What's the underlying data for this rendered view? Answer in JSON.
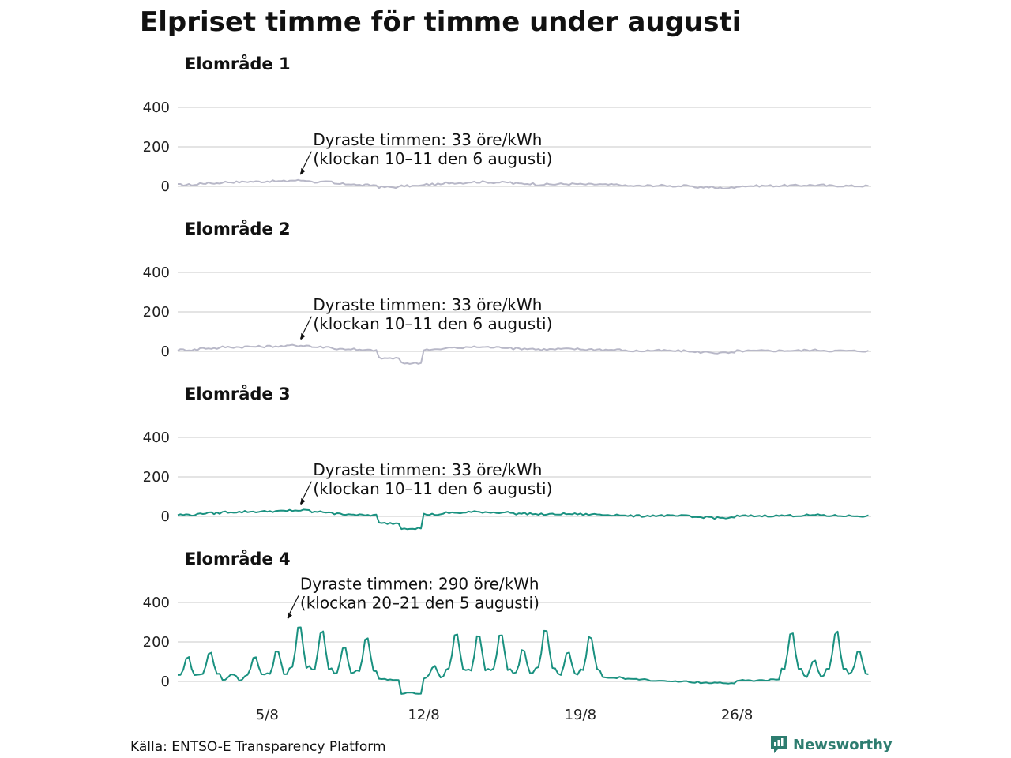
{
  "title": "Elpriset timme för timme under augusti",
  "source": "Källa: ENTSO-E Transparency Platform",
  "brand": "Newsworthy",
  "colors": {
    "muted": "#b8b8c8",
    "accent": "#1a9180",
    "brand": "#2e7d70"
  },
  "chart_data": [
    {
      "type": "line",
      "title": "Elområde 1",
      "unit": "öre/kWh",
      "x_ticks": [
        "5/8",
        "12/8",
        "19/8",
        "26/8"
      ],
      "y_ticks": [
        0,
        200,
        400
      ],
      "ylim": [
        -80,
        400
      ],
      "grid": true,
      "highlight": false,
      "annotation": {
        "line1": "Dyraste timmen: 33 öre/kWh",
        "line2": "(klockan 10–11 den 6 augusti)",
        "date": "2022-08-06",
        "hour": 10,
        "value": 33
      },
      "series": [
        {
          "x": [
            "2022-08-01",
            "2022-08-02",
            "2022-08-03",
            "2022-08-04",
            "2022-08-05",
            "2022-08-06",
            "2022-08-07",
            "2022-08-08",
            "2022-08-09",
            "2022-08-10",
            "2022-08-11",
            "2022-08-12",
            "2022-08-13",
            "2022-08-14",
            "2022-08-15",
            "2022-08-16",
            "2022-08-17",
            "2022-08-18",
            "2022-08-19",
            "2022-08-20",
            "2022-08-21",
            "2022-08-22",
            "2022-08-23",
            "2022-08-24",
            "2022-08-25",
            "2022-08-26",
            "2022-08-27",
            "2022-08-28",
            "2022-08-29",
            "2022-08-30",
            "2022-08-31"
          ],
          "y": [
            8,
            16,
            22,
            24,
            26,
            30,
            22,
            12,
            6,
            -4,
            2,
            10,
            18,
            22,
            20,
            14,
            10,
            12,
            10,
            8,
            2,
            4,
            2,
            -4,
            -8,
            2,
            3,
            4,
            6,
            3,
            2
          ]
        }
      ]
    },
    {
      "type": "line",
      "title": "Elområde 2",
      "unit": "öre/kWh",
      "x_ticks": [
        "5/8",
        "12/8",
        "19/8",
        "26/8"
      ],
      "y_ticks": [
        0,
        200,
        400
      ],
      "ylim": [
        -80,
        400
      ],
      "grid": true,
      "highlight": false,
      "annotation": {
        "line1": "Dyraste timmen: 33 öre/kWh",
        "line2": "(klockan 10–11 den 6 augusti)",
        "date": "2022-08-06",
        "hour": 10,
        "value": 33
      },
      "series": [
        {
          "x": [
            "2022-08-01",
            "2022-08-02",
            "2022-08-03",
            "2022-08-04",
            "2022-08-05",
            "2022-08-06",
            "2022-08-07",
            "2022-08-08",
            "2022-08-09",
            "2022-08-10",
            "2022-08-11",
            "2022-08-12",
            "2022-08-13",
            "2022-08-14",
            "2022-08-15",
            "2022-08-16",
            "2022-08-17",
            "2022-08-18",
            "2022-08-19",
            "2022-08-20",
            "2022-08-21",
            "2022-08-22",
            "2022-08-23",
            "2022-08-24",
            "2022-08-25",
            "2022-08-26",
            "2022-08-27",
            "2022-08-28",
            "2022-08-29",
            "2022-08-30",
            "2022-08-31"
          ],
          "y": [
            8,
            16,
            22,
            24,
            26,
            30,
            22,
            12,
            6,
            -35,
            -60,
            10,
            18,
            22,
            20,
            14,
            10,
            12,
            10,
            8,
            2,
            4,
            2,
            -4,
            -8,
            2,
            3,
            4,
            6,
            3,
            2
          ]
        }
      ]
    },
    {
      "type": "line",
      "title": "Elområde 3",
      "unit": "öre/kWh",
      "x_ticks": [
        "5/8",
        "12/8",
        "19/8",
        "26/8"
      ],
      "y_ticks": [
        0,
        200,
        400
      ],
      "ylim": [
        -80,
        400
      ],
      "grid": true,
      "highlight": true,
      "annotation": {
        "line1": "Dyraste timmen: 33 öre/kWh",
        "line2": "(klockan 10–11 den 6 augusti)",
        "date": "2022-08-06",
        "hour": 10,
        "value": 33
      },
      "series": [
        {
          "x": [
            "2022-08-01",
            "2022-08-02",
            "2022-08-03",
            "2022-08-04",
            "2022-08-05",
            "2022-08-06",
            "2022-08-07",
            "2022-08-08",
            "2022-08-09",
            "2022-08-10",
            "2022-08-11",
            "2022-08-12",
            "2022-08-13",
            "2022-08-14",
            "2022-08-15",
            "2022-08-16",
            "2022-08-17",
            "2022-08-18",
            "2022-08-19",
            "2022-08-20",
            "2022-08-21",
            "2022-08-22",
            "2022-08-23",
            "2022-08-24",
            "2022-08-25",
            "2022-08-26",
            "2022-08-27",
            "2022-08-28",
            "2022-08-29",
            "2022-08-30",
            "2022-08-31"
          ],
          "y": [
            8,
            16,
            22,
            24,
            26,
            30,
            22,
            12,
            6,
            -35,
            -60,
            10,
            18,
            22,
            20,
            14,
            10,
            12,
            10,
            8,
            2,
            4,
            2,
            -4,
            -8,
            2,
            3,
            4,
            6,
            3,
            2
          ]
        }
      ]
    },
    {
      "type": "line",
      "title": "Elområde 4",
      "unit": "öre/kWh",
      "x_ticks": [
        "5/8",
        "12/8",
        "19/8",
        "26/8"
      ],
      "y_ticks": [
        0,
        200,
        400
      ],
      "ylim": [
        -80,
        400
      ],
      "grid": true,
      "highlight": true,
      "annotation": {
        "line1": "Dyraste timmen: 290 öre/kWh",
        "line2": "(klockan 20–21 den 5 augusti)",
        "date": "2022-08-05",
        "hour": 20,
        "value": 290
      },
      "series": [
        {
          "x": [
            "2022-08-01",
            "2022-08-02",
            "2022-08-03",
            "2022-08-04",
            "2022-08-05",
            "2022-08-06",
            "2022-08-07",
            "2022-08-08",
            "2022-08-09",
            "2022-08-10",
            "2022-08-11",
            "2022-08-12",
            "2022-08-13",
            "2022-08-14",
            "2022-08-15",
            "2022-08-16",
            "2022-08-17",
            "2022-08-18",
            "2022-08-19",
            "2022-08-20",
            "2022-08-21",
            "2022-08-22",
            "2022-08-23",
            "2022-08-24",
            "2022-08-25",
            "2022-08-26",
            "2022-08-27",
            "2022-08-28",
            "2022-08-29",
            "2022-08-30",
            "2022-08-31"
          ],
          "y": [
            125,
            150,
            40,
            125,
            160,
            290,
            265,
            175,
            230,
            10,
            -60,
            80,
            250,
            240,
            245,
            165,
            270,
            150,
            235,
            20,
            10,
            5,
            0,
            -5,
            -8,
            5,
            8,
            255,
            110,
            260,
            165
          ]
        }
      ]
    }
  ]
}
